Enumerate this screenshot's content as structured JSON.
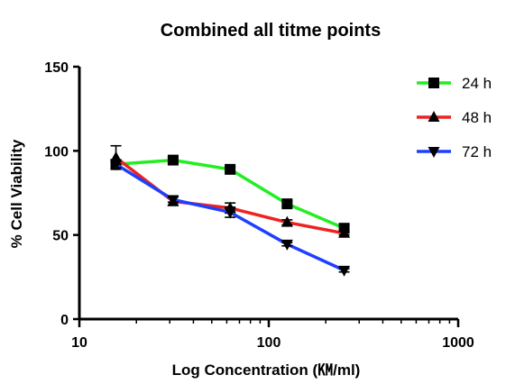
{
  "chart_data": {
    "type": "line",
    "title": "Combined all titme points",
    "xlabel": "Log Concentration (㏎/ml)",
    "ylabel": "% Cell Viability",
    "x_scale": "log",
    "xlim": [
      10,
      1000
    ],
    "ylim": [
      0,
      150
    ],
    "x_ticks": [
      10,
      100,
      1000
    ],
    "x_tick_labels": [
      "10",
      "100",
      "1000"
    ],
    "y_ticks": [
      0,
      50,
      100,
      150
    ],
    "y_tick_labels": [
      "0",
      "50",
      "100",
      "150"
    ],
    "grid": false,
    "legend_position": "top-right",
    "x": [
      15.6,
      31.25,
      62.5,
      125,
      250
    ],
    "series": [
      {
        "name": "24 h",
        "color": "#22ee22",
        "marker": "square",
        "values": [
          92,
          94.5,
          89,
          68.5,
          54
        ],
        "errors": [
          1.5,
          2,
          1.5,
          1.5,
          2
        ]
      },
      {
        "name": "48 h",
        "color": "#ee2222",
        "marker": "triangle-up",
        "values": [
          96,
          70,
          66,
          57.5,
          51
        ],
        "errors": [
          7,
          2.5,
          3,
          1.5,
          1
        ]
      },
      {
        "name": "72 h",
        "color": "#1f3fff",
        "marker": "triangle-down",
        "values": [
          92,
          71,
          63.5,
          44.5,
          29
        ],
        "errors": [
          2,
          1.5,
          3,
          1,
          1
        ]
      }
    ]
  }
}
